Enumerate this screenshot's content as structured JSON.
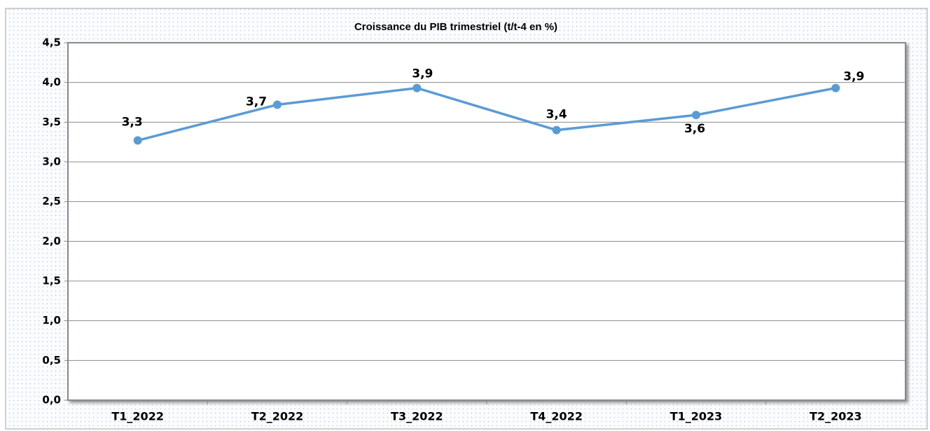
{
  "chart_data": {
    "type": "line",
    "title": "Croissance du PIB trimestriel (t/t-4 en %)",
    "categories": [
      "T1_2022",
      "T2_2022",
      "T3_2022",
      "T4_2022",
      "T1_2023",
      "T2_2023"
    ],
    "series": [
      {
        "name": "Croissance du PIB trimestriel (t/t-4 en %)",
        "color": "#5b9bd5",
        "values": [
          3.27,
          3.72,
          3.93,
          3.4,
          3.59,
          3.93
        ],
        "value_labels": [
          "3,3",
          "3,7",
          "3,9",
          "3,4",
          "3,6",
          "3,9"
        ]
      }
    ],
    "ylim": [
      0,
      4.5
    ],
    "yticks": [
      {
        "value": 0,
        "label": "0,0"
      },
      {
        "value": 0.5,
        "label": "0,5"
      },
      {
        "value": 1,
        "label": "1,0"
      },
      {
        "value": 1.5,
        "label": "1,5"
      },
      {
        "value": 2,
        "label": "2,0"
      },
      {
        "value": 2.5,
        "label": "2,5"
      },
      {
        "value": 3,
        "label": "3,0"
      },
      {
        "value": 3.5,
        "label": "3,5"
      },
      {
        "value": 4,
        "label": "4,0"
      },
      {
        "value": 4.5,
        "label": "4,5"
      }
    ],
    "grid": true
  }
}
